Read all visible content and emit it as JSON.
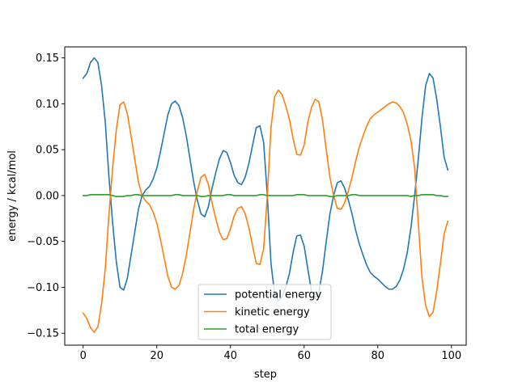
{
  "chart_data": {
    "type": "line",
    "xlabel": "step",
    "ylabel": "energy / kcal/mol",
    "xlim": [
      -5,
      104
    ],
    "ylim": [
      -0.163,
      0.162
    ],
    "xticks": [
      0,
      20,
      40,
      60,
      80,
      100
    ],
    "yticks": [
      -0.15,
      -0.1,
      -0.05,
      0.0,
      0.05,
      0.1,
      0.15
    ],
    "xtick_labels": [
      "0",
      "20",
      "40",
      "60",
      "80",
      "100"
    ],
    "ytick_labels": [
      "−0.15",
      "−0.10",
      "−0.05",
      "0.00",
      "0.05",
      "0.10",
      "0.15"
    ],
    "grid": false,
    "legend_position": "lower-center",
    "x": [
      0,
      1,
      2,
      3,
      4,
      5,
      6,
      7,
      8,
      9,
      10,
      11,
      12,
      13,
      14,
      15,
      16,
      17,
      18,
      19,
      20,
      21,
      22,
      23,
      24,
      25,
      26,
      27,
      28,
      29,
      30,
      31,
      32,
      33,
      34,
      35,
      36,
      37,
      38,
      39,
      40,
      41,
      42,
      43,
      44,
      45,
      46,
      47,
      48,
      49,
      50,
      51,
      52,
      53,
      54,
      55,
      56,
      57,
      58,
      59,
      60,
      61,
      62,
      63,
      64,
      65,
      66,
      67,
      68,
      69,
      70,
      71,
      72,
      73,
      74,
      75,
      76,
      77,
      78,
      79,
      80,
      81,
      82,
      83,
      84,
      85,
      86,
      87,
      88,
      89,
      90,
      91,
      92,
      93,
      94,
      95,
      96,
      97,
      98,
      99
    ],
    "series": [
      {
        "name": "potential energy",
        "color": "#1f77b4",
        "values": [
          0.128,
          0.133,
          0.145,
          0.15,
          0.145,
          0.12,
          0.08,
          0.02,
          -0.03,
          -0.072,
          -0.1,
          -0.103,
          -0.09,
          -0.065,
          -0.04,
          -0.015,
          0.0,
          0.006,
          0.01,
          0.018,
          0.03,
          0.048,
          0.068,
          0.088,
          0.1,
          0.103,
          0.098,
          0.085,
          0.065,
          0.04,
          0.015,
          -0.005,
          -0.02,
          -0.023,
          -0.012,
          0.008,
          0.025,
          0.04,
          0.049,
          0.047,
          0.036,
          0.022,
          0.014,
          0.012,
          0.02,
          0.035,
          0.055,
          0.074,
          0.076,
          0.058,
          0.0,
          -0.074,
          -0.108,
          -0.115,
          -0.11,
          -0.1,
          -0.085,
          -0.062,
          -0.044,
          -0.043,
          -0.055,
          -0.08,
          -0.104,
          -0.112,
          -0.105,
          -0.082,
          -0.05,
          -0.02,
          0.0,
          0.014,
          0.016,
          0.008,
          -0.005,
          -0.02,
          -0.038,
          -0.053,
          -0.065,
          -0.076,
          -0.084,
          -0.088,
          -0.091,
          -0.095,
          -0.099,
          -0.102,
          -0.102,
          -0.099,
          -0.092,
          -0.08,
          -0.062,
          -0.035,
          0.0,
          0.04,
          0.085,
          0.12,
          0.133,
          0.128,
          0.105,
          0.075,
          0.042,
          0.028
        ]
      },
      {
        "name": "kinetic energy",
        "color": "#ff7f0e",
        "values": [
          -0.128,
          -0.134,
          -0.144,
          -0.149,
          -0.143,
          -0.118,
          -0.08,
          -0.02,
          0.03,
          0.072,
          0.099,
          0.102,
          0.089,
          0.065,
          0.04,
          0.015,
          0.0,
          -0.006,
          -0.01,
          -0.018,
          -0.03,
          -0.048,
          -0.068,
          -0.088,
          -0.1,
          -0.102,
          -0.098,
          -0.085,
          -0.065,
          -0.04,
          -0.015,
          0.005,
          0.02,
          0.023,
          0.012,
          -0.008,
          -0.025,
          -0.04,
          -0.048,
          -0.047,
          -0.036,
          -0.022,
          -0.014,
          -0.012,
          -0.02,
          -0.035,
          -0.055,
          -0.074,
          -0.075,
          -0.058,
          0.0,
          0.074,
          0.108,
          0.115,
          0.11,
          0.098,
          0.083,
          0.062,
          0.045,
          0.044,
          0.055,
          0.08,
          0.096,
          0.105,
          0.102,
          0.082,
          0.05,
          0.02,
          0.0,
          -0.014,
          -0.015,
          -0.008,
          0.005,
          0.02,
          0.038,
          0.053,
          0.065,
          0.076,
          0.084,
          0.088,
          0.091,
          0.094,
          0.097,
          0.1,
          0.102,
          0.101,
          0.097,
          0.09,
          0.078,
          0.06,
          0.03,
          -0.03,
          -0.09,
          -0.12,
          -0.132,
          -0.127,
          -0.104,
          -0.074,
          -0.042,
          -0.028
        ]
      },
      {
        "name": "total energy",
        "color": "#2ca02c",
        "values": [
          0.0,
          0.0,
          0.001,
          0.001,
          0.001,
          0.001,
          0.001,
          0.001,
          0.0,
          -0.001,
          -0.001,
          -0.001,
          0.0,
          0.0,
          0.001,
          0.001,
          0.0,
          0.0,
          0.0,
          0.0,
          0.0,
          0.0,
          0.0,
          0.0,
          0.0,
          0.001,
          0.001,
          0.0,
          0.0,
          0.0,
          0.0,
          0.0,
          -0.001,
          -0.001,
          0.0,
          0.0,
          0.0,
          0.0,
          0.0,
          0.001,
          0.001,
          0.0,
          0.0,
          0.0,
          0.0,
          0.0,
          0.0,
          0.0,
          0.001,
          0.001,
          0.0,
          0.0,
          0.0,
          0.0,
          0.0,
          0.0,
          0.0,
          0.0,
          0.001,
          0.001,
          0.001,
          0.0,
          0.0,
          0.0,
          0.0,
          0.0,
          0.0,
          -0.001,
          -0.001,
          0.0,
          0.0,
          0.0,
          0.0,
          0.001,
          0.001,
          0.0,
          0.0,
          0.0,
          0.0,
          0.0,
          0.0,
          0.0,
          0.0,
          0.0,
          0.0,
          0.0,
          0.0,
          0.0,
          0.0,
          -0.001,
          0.0,
          0.0,
          0.001,
          0.001,
          0.001,
          0.001,
          0.0,
          0.0,
          -0.001,
          -0.001
        ]
      }
    ]
  }
}
